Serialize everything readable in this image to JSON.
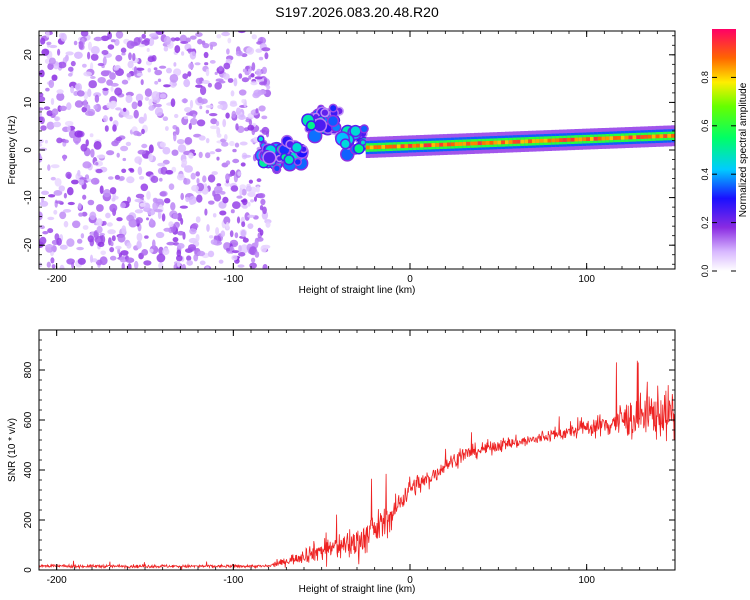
{
  "title": "S197.2026.083.20.48.R20",
  "chart_data": [
    {
      "type": "heatmap",
      "xlabel": "Height of straight line (km)",
      "ylabel": "Frequency (Hz)",
      "xlim": [
        -210,
        150
      ],
      "ylim": [
        -25,
        25
      ],
      "xticks": [
        -200,
        -100,
        0,
        100
      ],
      "xtick_labels": [
        "-200",
        "-100",
        "0",
        "100"
      ],
      "yticks": [
        -20,
        -10,
        0,
        10,
        20
      ],
      "ytick_labels": [
        "-20",
        "-10",
        "0",
        "10",
        "20"
      ],
      "colorbar": {
        "label": "Normalized spectral amplitude",
        "range": [
          0,
          1
        ],
        "ticks": [
          0.0,
          0.2,
          0.4,
          0.6,
          0.8
        ],
        "tick_labels": [
          "0.0",
          "0.2",
          "0.4",
          "0.6",
          "0.8"
        ]
      },
      "regions": [
        {
          "name": "noise-field",
          "x_range": [
            -210,
            -80
          ],
          "y_range": [
            -25,
            25
          ],
          "amplitude": 0.1
        },
        {
          "name": "scattered-cluster",
          "x_range": [
            -85,
            -25
          ],
          "y_range": [
            -8,
            15
          ],
          "amplitude": 0.35
        },
        {
          "name": "carrier-line",
          "x_range": [
            -25,
            150
          ],
          "freq_start": 0.5,
          "freq_end": 3.0,
          "amplitude": 0.95
        }
      ]
    },
    {
      "type": "line",
      "xlabel": "Height of straight line (km)",
      "ylabel": "SNR (10 * v/v)",
      "xlim": [
        -210,
        150
      ],
      "ylim": [
        0,
        960
      ],
      "xticks": [
        -200,
        -100,
        0,
        100
      ],
      "xtick_labels": [
        "-200",
        "-100",
        "0",
        "100"
      ],
      "yticks": [
        0,
        200,
        400,
        600,
        800
      ],
      "ytick_labels": [
        "0",
        "200",
        "400",
        "600",
        "800"
      ],
      "series": [
        {
          "name": "SNR",
          "color": "#ee2222",
          "x": [
            -210,
            -150,
            -100,
            -80,
            -70,
            -60,
            -50,
            -40,
            -30,
            -20,
            -10,
            -5,
            0,
            10,
            20,
            30,
            40,
            50,
            60,
            70,
            80,
            90,
            100,
            110,
            120,
            130,
            140,
            150
          ],
          "y": [
            15,
            15,
            15,
            15,
            35,
            60,
            80,
            95,
            110,
            160,
            220,
            280,
            330,
            360,
            420,
            460,
            480,
            500,
            510,
            520,
            540,
            550,
            570,
            580,
            600,
            610,
            630,
            620
          ],
          "noise": [
            10,
            10,
            10,
            10,
            25,
            50,
            70,
            90,
            110,
            110,
            90,
            80,
            70,
            60,
            50,
            50,
            45,
            45,
            40,
            40,
            40,
            45,
            50,
            80,
            110,
            140,
            170,
            150
          ]
        }
      ]
    }
  ]
}
